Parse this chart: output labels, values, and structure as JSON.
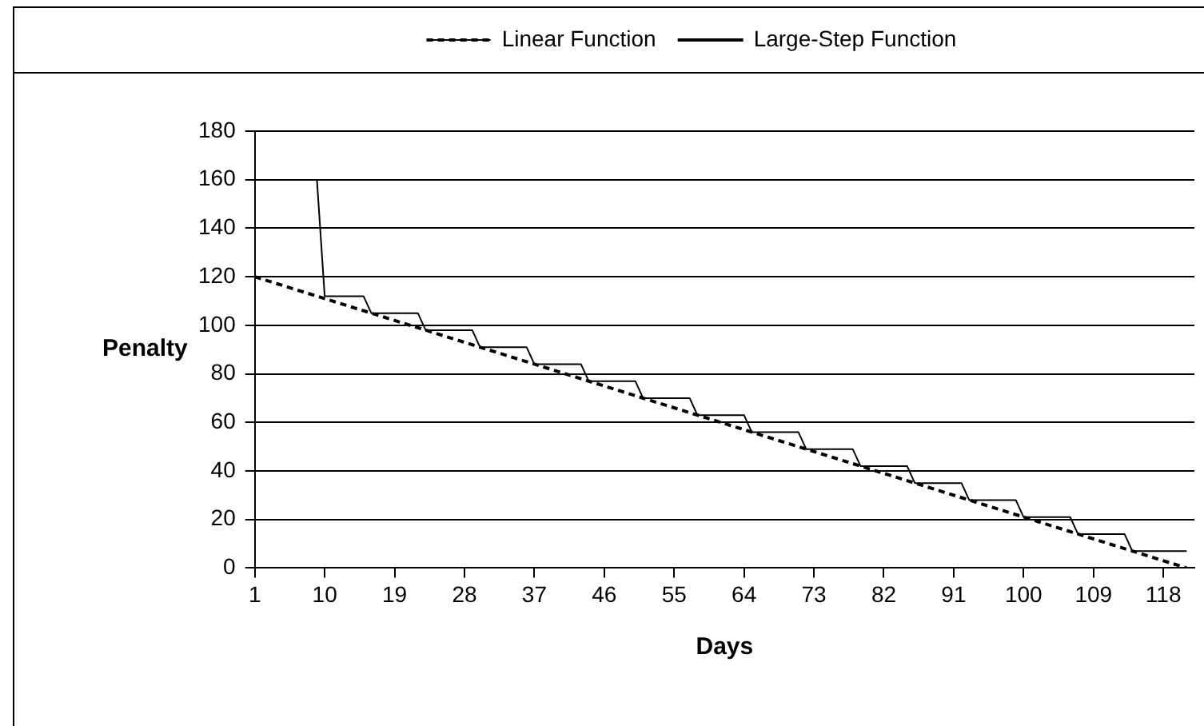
{
  "chart_data": {
    "type": "line",
    "xlabel": "Days",
    "ylabel": "Penalty",
    "xlim": [
      1,
      122
    ],
    "xticks": [
      1,
      10,
      19,
      28,
      37,
      46,
      55,
      64,
      73,
      82,
      91,
      100,
      109,
      118
    ],
    "ylim": [
      0,
      180
    ],
    "yticks": [
      0,
      20,
      40,
      60,
      80,
      100,
      120,
      140,
      160,
      180
    ],
    "grid": "y",
    "legend": "top",
    "marker": "none",
    "series": [
      {
        "name": "Linear Function",
        "color": "#000000",
        "line_style": "dashed",
        "x": [
          1,
          121
        ],
        "values": [
          120,
          0
        ]
      },
      {
        "name": "Large-Step Function",
        "color": "#000000",
        "line_style": "solid",
        "x": [
          9,
          10,
          15,
          16,
          22,
          23,
          29,
          30,
          36,
          37,
          43,
          44,
          50,
          51,
          57,
          58,
          64,
          65,
          71,
          72,
          78,
          79,
          85,
          86,
          92,
          93,
          99,
          100,
          106,
          107,
          113,
          114,
          121
        ],
        "values": [
          160,
          112,
          112,
          105,
          105,
          98,
          98,
          91,
          91,
          84,
          84,
          77,
          77,
          70,
          70,
          63,
          63,
          56,
          56,
          49,
          49,
          42,
          42,
          35,
          35,
          28,
          28,
          21,
          21,
          14,
          14,
          7,
          7
        ]
      }
    ]
  }
}
